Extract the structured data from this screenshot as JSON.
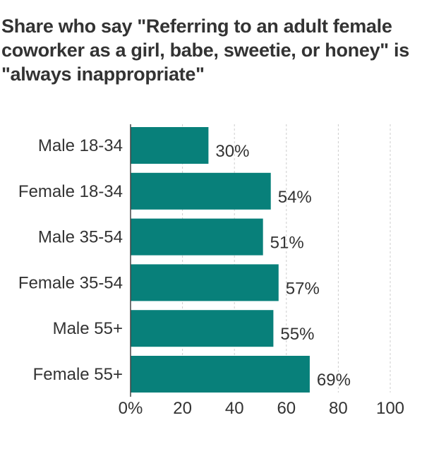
{
  "title": "Share who say \"Referring to an adult female coworker as a girl, babe, sweetie, or honey\" is \"always inappropriate\"",
  "chart_data": {
    "type": "bar",
    "orientation": "horizontal",
    "title": "Share who say \"Referring to an adult female coworker as a girl, babe, sweetie, or honey\" is \"always inappropriate\"",
    "categories": [
      "Male 18-34",
      "Female 18-34",
      "Male 35-54",
      "Female 35-54",
      "Male 55+",
      "Female 55+"
    ],
    "values": [
      30,
      54,
      51,
      57,
      55,
      69
    ],
    "value_labels": [
      "30%",
      "54%",
      "51%",
      "57%",
      "55%",
      "69%"
    ],
    "xlim": [
      0,
      100
    ],
    "x_ticks": [
      0,
      20,
      40,
      60,
      80,
      100
    ],
    "x_tick_labels": [
      "0%",
      "20",
      "40",
      "60",
      "80",
      "100"
    ],
    "grid": true,
    "bar_color": "#08807a"
  }
}
